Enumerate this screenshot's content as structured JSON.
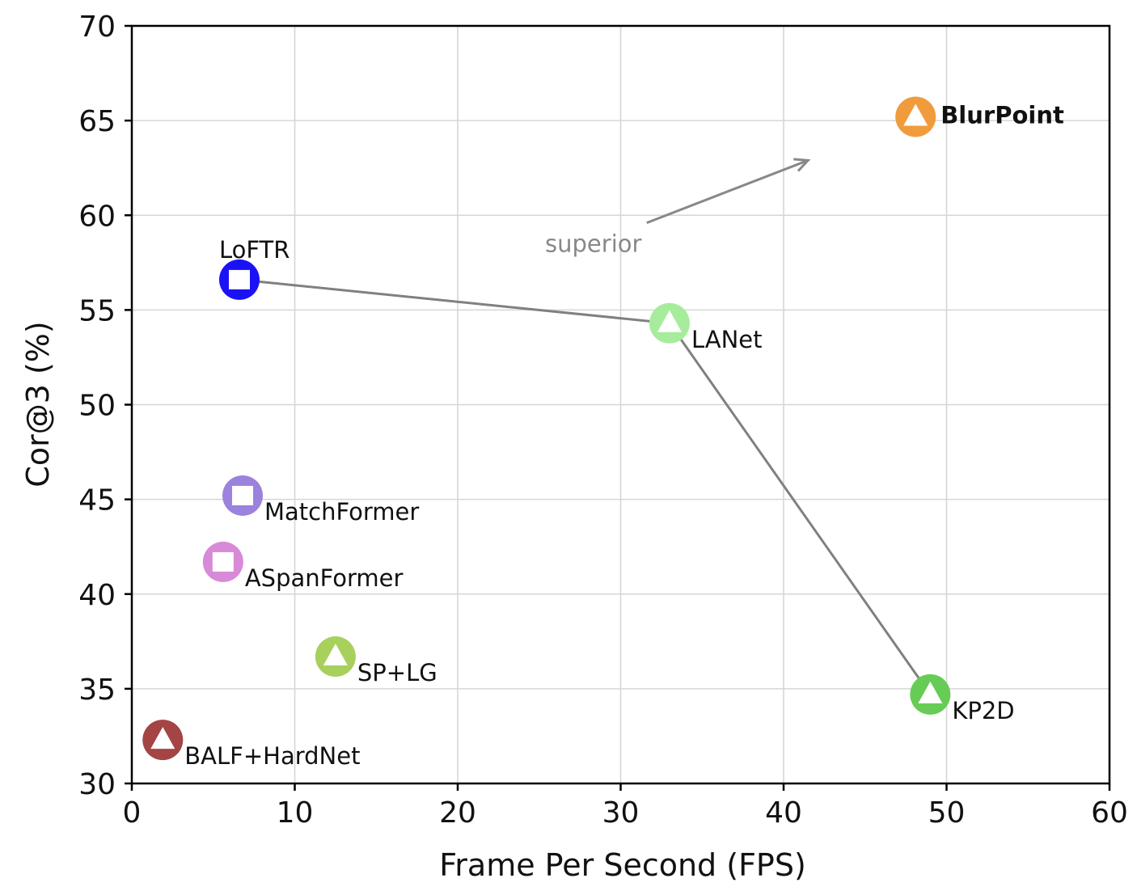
{
  "chart_data": {
    "type": "scatter",
    "title": "",
    "xlabel": "Frame Per Second (FPS)",
    "ylabel": "Cor@3 (%)",
    "xlim": [
      0,
      60
    ],
    "ylim": [
      30,
      70
    ],
    "xticks": [
      0,
      10,
      20,
      30,
      40,
      50,
      60
    ],
    "yticks": [
      30,
      35,
      40,
      45,
      50,
      55,
      60,
      65,
      70
    ],
    "grid": true,
    "points": [
      {
        "name": "BlurPoint",
        "x": 48.1,
        "y": 65.2,
        "marker": "triangle",
        "color": "#f09c3c",
        "bold": true
      },
      {
        "name": "LoFTR",
        "x": 6.6,
        "y": 56.6,
        "marker": "square",
        "color": "#1a12f5"
      },
      {
        "name": "LANet",
        "x": 33.0,
        "y": 54.3,
        "marker": "triangle",
        "color": "#a6ec9c"
      },
      {
        "name": "KP2D",
        "x": 49.0,
        "y": 34.7,
        "marker": "triangle",
        "color": "#66cc55"
      },
      {
        "name": "MatchFormer",
        "x": 6.8,
        "y": 45.2,
        "marker": "square",
        "color": "#9b82dc"
      },
      {
        "name": "ASpanFormer",
        "x": 5.6,
        "y": 41.7,
        "marker": "square",
        "color": "#d88ad8"
      },
      {
        "name": "SP+LG",
        "x": 12.5,
        "y": 36.7,
        "marker": "triangle",
        "color": "#a8d05c"
      },
      {
        "name": "BALF+HardNet",
        "x": 1.9,
        "y": 32.3,
        "marker": "triangle",
        "color": "#a44444"
      }
    ],
    "connected_line": {
      "points": [
        "LoFTR",
        "LANet",
        "KP2D"
      ],
      "color": "#808080"
    },
    "annotation": {
      "text": "superior",
      "arrow_from": [
        31.6,
        59.6
      ],
      "arrow_to": [
        41.5,
        62.9
      ],
      "color": "#888888"
    }
  }
}
